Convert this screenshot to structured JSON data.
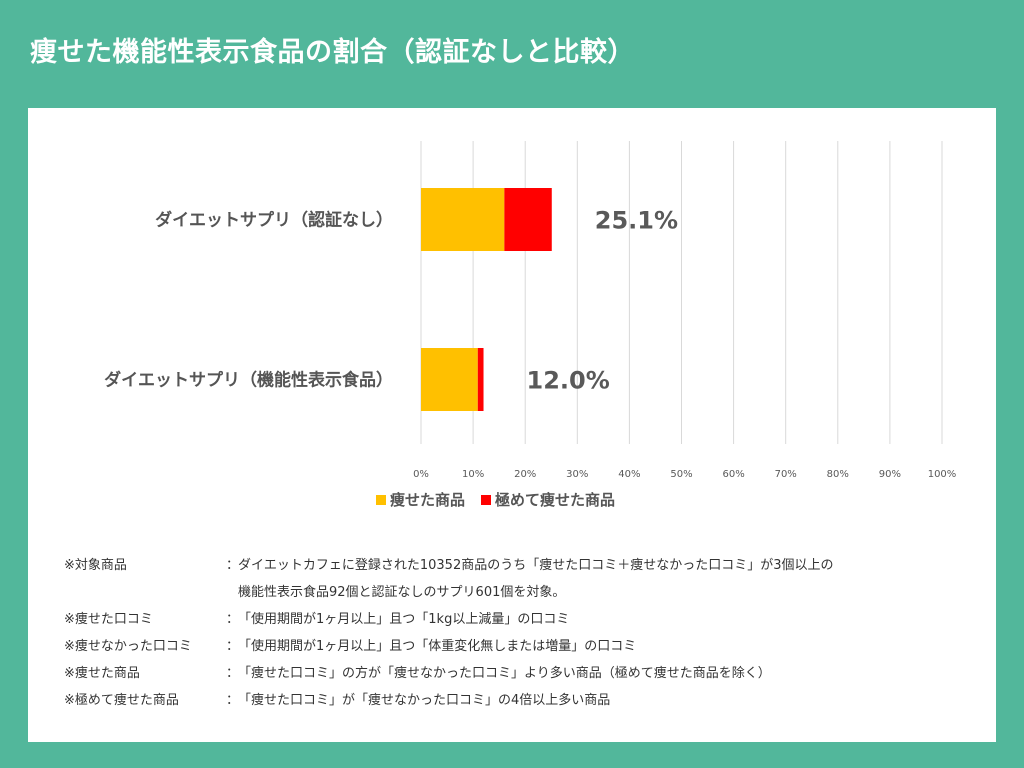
{
  "page_title": "痩せた機能性表示食品の割合（認証なしと比較）",
  "chart_data": {
    "type": "bar",
    "orientation": "horizontal",
    "stacked": true,
    "categories": [
      "ダイエットサプリ（認証なし）",
      "ダイエットサプリ（機能性表示食品）"
    ],
    "series": [
      {
        "name": "痩せた商品",
        "color": "#ffc000",
        "values": [
          16.0,
          10.9
        ]
      },
      {
        "name": "極めて痩せた商品",
        "color": "#ff0000",
        "values": [
          9.1,
          1.1
        ]
      }
    ],
    "total_labels": [
      "25.1%",
      "12.0%"
    ],
    "xlim": [
      0,
      100
    ],
    "x_ticks": [
      "0%",
      "10%",
      "20%",
      "30%",
      "40%",
      "50%",
      "60%",
      "70%",
      "80%",
      "90%",
      "100%"
    ],
    "grid": true,
    "legend_position": "bottom"
  },
  "notes": [
    {
      "key": "※対象商品",
      "lines": [
        "ダイエットカフェに登録された10352商品のうち「痩せた口コミ＋痩せなかった口コミ」が3個以上の",
        "機能性表示食品92個と認証なしのサプリ601個を対象。"
      ]
    },
    {
      "key": "※痩せた口コミ",
      "lines": [
        "「使用期間が1ヶ月以上」且つ「1kg以上減量」の口コミ"
      ]
    },
    {
      "key": "※痩せなかった口コミ",
      "lines": [
        "「使用期間が1ヶ月以上」且つ「体重変化無しまたは増量」の口コミ"
      ]
    },
    {
      "key": "※痩せた商品",
      "lines": [
        "「痩せた口コミ」の方が「痩せなかった口コミ」より多い商品（極めて痩せた商品を除く）"
      ]
    },
    {
      "key": "※極めて痩せた商品",
      "lines": [
        "「痩せた口コミ」が「痩せなかった口コミ」の4倍以上多い商品"
      ]
    }
  ],
  "colon": "："
}
